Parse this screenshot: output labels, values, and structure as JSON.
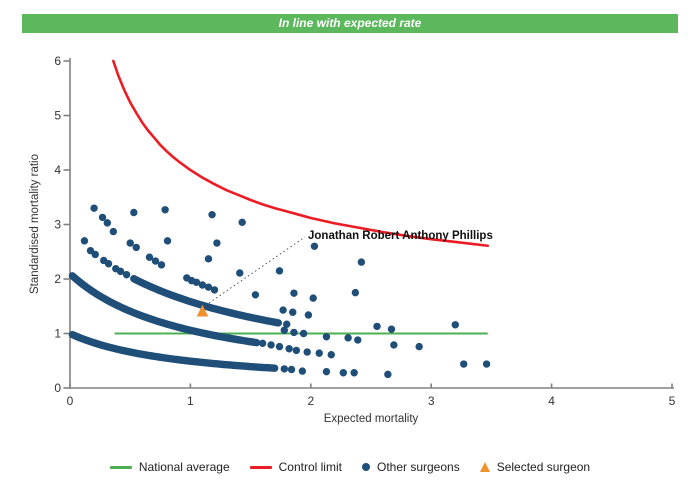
{
  "header": {
    "title": "In line with expected rate",
    "bg_color": "#5cb85c",
    "text_color": "#ffffff"
  },
  "chart_data": {
    "type": "scatter",
    "title": "",
    "xlabel": "Expected mortality",
    "ylabel": "Standardised mortality ratio",
    "xlim": [
      0,
      5
    ],
    "ylim": [
      0,
      6
    ],
    "x_ticks": [
      0,
      1,
      2,
      3,
      4,
      5
    ],
    "y_ticks": [
      0,
      1,
      2,
      3,
      4,
      5,
      6
    ],
    "grid": false,
    "colors": {
      "axis": "#808080",
      "surgeon_point": "#1f4e79",
      "national_average": "#4caf50",
      "control_limit": "#ec1c24",
      "selected_surgeon": "#f2902e"
    },
    "national_average": {
      "y": 1.0,
      "x_start": 0.37,
      "x_end": 3.47
    },
    "control_limit": {
      "formula": "y = 1 + 3/sqrt(x)",
      "points": [
        [
          0.36,
          6.0
        ],
        [
          0.4,
          5.74
        ],
        [
          0.45,
          5.47
        ],
        [
          0.5,
          5.24
        ],
        [
          0.55,
          5.05
        ],
        [
          0.6,
          4.87
        ],
        [
          0.65,
          4.72
        ],
        [
          0.7,
          4.59
        ],
        [
          0.75,
          4.46
        ],
        [
          0.8,
          4.35
        ],
        [
          0.85,
          4.25
        ],
        [
          0.9,
          4.16
        ],
        [
          0.95,
          4.08
        ],
        [
          1.0,
          4.0
        ],
        [
          1.1,
          3.86
        ],
        [
          1.2,
          3.74
        ],
        [
          1.3,
          3.63
        ],
        [
          1.4,
          3.54
        ],
        [
          1.5,
          3.45
        ],
        [
          1.6,
          3.37
        ],
        [
          1.7,
          3.3
        ],
        [
          1.8,
          3.24
        ],
        [
          1.9,
          3.18
        ],
        [
          2.0,
          3.12
        ],
        [
          2.2,
          3.02
        ],
        [
          2.4,
          2.94
        ],
        [
          2.6,
          2.86
        ],
        [
          2.8,
          2.79
        ],
        [
          3.0,
          2.73
        ],
        [
          3.2,
          2.68
        ],
        [
          3.47,
          2.61
        ]
      ]
    },
    "other_surgeons": {
      "dense_bands": [
        {
          "style": "overlapping-dots",
          "a": 0.97,
          "b": 0.97,
          "x_start": 0.02,
          "x_end": 1.72
        },
        {
          "style": "overlapping-dots",
          "a": 2.14,
          "b": 1.02,
          "x_start": 0.02,
          "x_end": 1.55
        },
        {
          "style": "overlapping-dots",
          "a": 3.55,
          "b": 1.24,
          "x_start": 0.53,
          "x_end": 1.75
        }
      ],
      "points": [
        [
          0.12,
          2.7
        ],
        [
          0.2,
          3.3
        ],
        [
          0.27,
          3.13
        ],
        [
          0.31,
          3.03
        ],
        [
          0.36,
          2.87
        ],
        [
          0.53,
          3.22
        ],
        [
          0.79,
          3.27
        ],
        [
          1.18,
          3.18
        ],
        [
          1.43,
          3.04
        ],
        [
          0.81,
          2.7
        ],
        [
          1.15,
          2.37
        ],
        [
          1.22,
          2.66
        ],
        [
          1.41,
          2.11
        ],
        [
          1.54,
          1.71
        ],
        [
          1.74,
          2.15
        ],
        [
          1.86,
          1.74
        ],
        [
          2.02,
          1.65
        ],
        [
          2.03,
          2.6
        ],
        [
          2.37,
          1.75
        ],
        [
          2.42,
          2.31
        ],
        [
          1.77,
          1.43
        ],
        [
          1.85,
          1.39
        ],
        [
          1.98,
          1.34
        ],
        [
          2.13,
          0.94
        ],
        [
          2.31,
          0.92
        ],
        [
          2.39,
          0.88
        ],
        [
          2.07,
          0.64
        ],
        [
          2.17,
          0.61
        ],
        [
          2.55,
          1.13
        ],
        [
          2.67,
          1.08
        ],
        [
          2.69,
          0.79
        ],
        [
          2.9,
          0.76
        ],
        [
          3.2,
          1.16
        ],
        [
          3.27,
          0.44
        ],
        [
          3.46,
          0.44
        ],
        [
          0.17,
          2.52
        ],
        [
          0.21,
          2.45
        ],
        [
          0.28,
          2.34
        ],
        [
          0.32,
          2.28
        ],
        [
          0.38,
          2.19
        ],
        [
          0.42,
          2.14
        ],
        [
          0.47,
          2.08
        ],
        [
          0.5,
          2.66
        ],
        [
          0.55,
          2.58
        ],
        [
          0.66,
          2.4
        ],
        [
          0.71,
          2.33
        ],
        [
          0.76,
          2.26
        ],
        [
          0.97,
          2.02
        ],
        [
          1.01,
          1.97
        ],
        [
          1.05,
          1.94
        ],
        [
          1.1,
          1.89
        ],
        [
          1.15,
          1.85
        ],
        [
          1.2,
          1.8
        ],
        [
          1.78,
          0.35
        ],
        [
          1.84,
          0.34
        ],
        [
          1.93,
          0.31
        ],
        [
          2.13,
          0.3
        ],
        [
          2.27,
          0.28
        ],
        [
          2.36,
          0.28
        ],
        [
          2.64,
          0.25
        ],
        [
          1.6,
          0.82
        ],
        [
          1.67,
          0.79
        ],
        [
          1.74,
          0.76
        ],
        [
          1.82,
          0.72
        ],
        [
          1.88,
          0.69
        ],
        [
          1.97,
          0.66
        ],
        [
          1.8,
          1.17
        ],
        [
          1.78,
          1.06
        ],
        [
          1.86,
          1.02
        ],
        [
          1.94,
          1.0
        ]
      ]
    },
    "selected_surgeon": {
      "name": "Jonathan Robert Anthony Phillips",
      "x": 1.1,
      "y": 1.4,
      "marker": "triangle"
    }
  },
  "legend": {
    "items": [
      {
        "label": "National average",
        "marker": "line",
        "color": "#4caf50"
      },
      {
        "label": "Control limit",
        "marker": "line",
        "color": "#ec1c24"
      },
      {
        "label": "Other surgeons",
        "marker": "dot",
        "color": "#1f4e79"
      },
      {
        "label": "Selected surgeon",
        "marker": "triangle",
        "color": "#f2902e"
      }
    ]
  }
}
